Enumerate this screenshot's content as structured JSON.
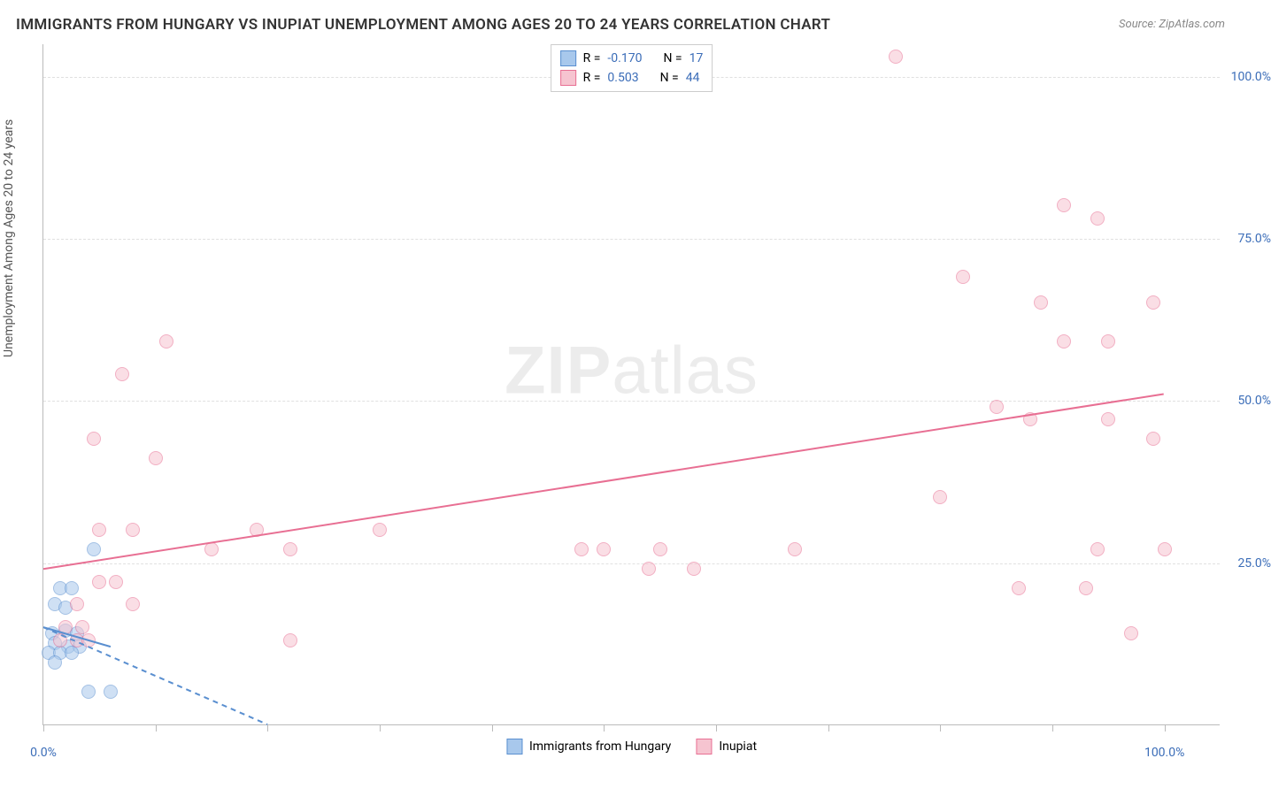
{
  "title": "IMMIGRANTS FROM HUNGARY VS INUPIAT UNEMPLOYMENT AMONG AGES 20 TO 24 YEARS CORRELATION CHART",
  "source": "Source: ZipAtlas.com",
  "y_axis_label": "Unemployment Among Ages 20 to 24 years",
  "watermark_bold": "ZIP",
  "watermark_light": "atlas",
  "chart": {
    "type": "scatter",
    "xlim": [
      0,
      105
    ],
    "ylim": [
      0,
      105
    ],
    "y_ticks": [
      {
        "pos": 25,
        "label": "25.0%"
      },
      {
        "pos": 50,
        "label": "50.0%"
      },
      {
        "pos": 75,
        "label": "75.0%"
      },
      {
        "pos": 100,
        "label": "100.0%"
      }
    ],
    "x_tick_positions": [
      0,
      10,
      20,
      30,
      40,
      50,
      60,
      70,
      80,
      90,
      100
    ],
    "x_tick_labels": [
      {
        "pos": 0,
        "label": "0.0%"
      },
      {
        "pos": 100,
        "label": "100.0%"
      }
    ],
    "grid_color": "#e0e0e0",
    "background_color": "#ffffff",
    "marker_radius": 8,
    "marker_opacity": 0.55,
    "series": [
      {
        "name": "Immigrants from Hungary",
        "color_fill": "#a8c8ec",
        "color_stroke": "#5a8fd0",
        "R": "-0.170",
        "N": "17",
        "trend": {
          "x1": 0,
          "y1": 15,
          "x2": 20,
          "y2": 0,
          "dashed": true,
          "color": "#5a8fd0"
        },
        "trend_solid": {
          "x1": 0,
          "y1": 15,
          "x2": 6,
          "y2": 12,
          "color": "#5a8fd0"
        },
        "points": [
          [
            4.5,
            27
          ],
          [
            1.5,
            21
          ],
          [
            2.5,
            21
          ],
          [
            1,
            18.5
          ],
          [
            2,
            18
          ],
          [
            0.8,
            14
          ],
          [
            2,
            14.5
          ],
          [
            3,
            14
          ],
          [
            1,
            12.5
          ],
          [
            2.2,
            12
          ],
          [
            3.2,
            12
          ],
          [
            0.5,
            11
          ],
          [
            1.5,
            11
          ],
          [
            2.5,
            11
          ],
          [
            1,
            9.5
          ],
          [
            4,
            5
          ],
          [
            6,
            5
          ]
        ]
      },
      {
        "name": "Inupiat",
        "color_fill": "#f6c4d0",
        "color_stroke": "#e86f93",
        "R": "0.503",
        "N": "44",
        "trend": {
          "x1": 0,
          "y1": 24,
          "x2": 100,
          "y2": 51,
          "dashed": false,
          "color": "#e86f93"
        },
        "points": [
          [
            76,
            103
          ],
          [
            91,
            80
          ],
          [
            94,
            78
          ],
          [
            82,
            69
          ],
          [
            89,
            65
          ],
          [
            99,
            65
          ],
          [
            11,
            59
          ],
          [
            91,
            59
          ],
          [
            95,
            59
          ],
          [
            7,
            54
          ],
          [
            85,
            49
          ],
          [
            88,
            47
          ],
          [
            95,
            47
          ],
          [
            4.5,
            44
          ],
          [
            99,
            44
          ],
          [
            10,
            41
          ],
          [
            80,
            35
          ],
          [
            5,
            30
          ],
          [
            8,
            30
          ],
          [
            19,
            30
          ],
          [
            30,
            30
          ],
          [
            15,
            27
          ],
          [
            22,
            27
          ],
          [
            48,
            27
          ],
          [
            50,
            27
          ],
          [
            55,
            27
          ],
          [
            67,
            27
          ],
          [
            94,
            27
          ],
          [
            100,
            27
          ],
          [
            54,
            24
          ],
          [
            58,
            24
          ],
          [
            5,
            22
          ],
          [
            6.5,
            22
          ],
          [
            87,
            21
          ],
          [
            93,
            21
          ],
          [
            3,
            18.5
          ],
          [
            8,
            18.5
          ],
          [
            2,
            15
          ],
          [
            3.5,
            15
          ],
          [
            97,
            14
          ],
          [
            1.5,
            13
          ],
          [
            3,
            13
          ],
          [
            4,
            13
          ],
          [
            22,
            13
          ]
        ]
      }
    ],
    "legend_top": {
      "R_label": "R =",
      "N_label": "N ="
    },
    "legend_bottom": [
      {
        "label": "Immigrants from Hungary",
        "fill": "#a8c8ec",
        "stroke": "#5a8fd0"
      },
      {
        "label": "Inupiat",
        "fill": "#f6c4d0",
        "stroke": "#e86f93"
      }
    ]
  }
}
